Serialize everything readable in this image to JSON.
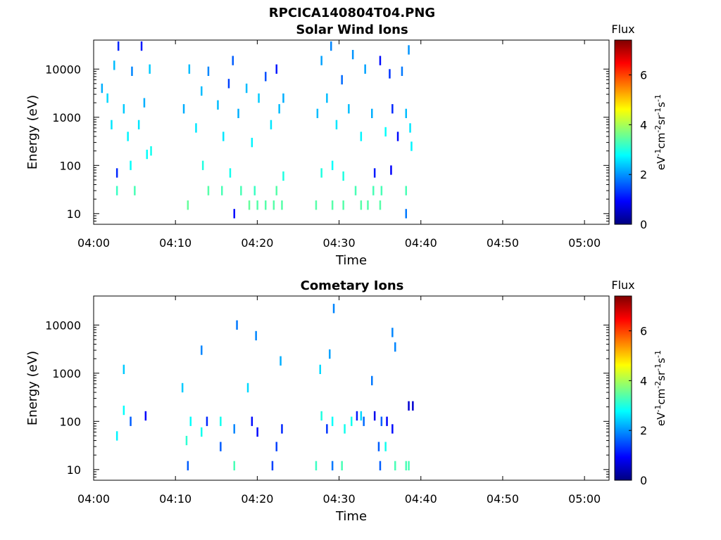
{
  "figure_title": "RPCICA140804T04.PNG",
  "colormap": [
    "#00007f",
    "#0000ff",
    "#007fff",
    "#00ffff",
    "#7fff7f",
    "#ffff00",
    "#ff7f00",
    "#ff0000",
    "#7f0000"
  ],
  "chart_data": [
    {
      "type": "heatmap",
      "title": "Solar Wind Ions",
      "xlabel": "Time",
      "ylabel": "Energy (eV)",
      "y_scale": "log",
      "x_range": [
        "04:00",
        "05:03"
      ],
      "y_range": [
        6,
        40000
      ],
      "x_ticks": [
        "04:00",
        "04:10",
        "04:20",
        "04:30",
        "04:40",
        "04:50",
        "05:00"
      ],
      "y_ticks": [
        "10",
        "100",
        "1000",
        "10000"
      ],
      "colorbar": {
        "title": "Flux",
        "label": "eV-1cm-2sr-1s-1",
        "range": [
          0,
          7.4
        ],
        "ticks": [
          "0",
          "2",
          "4",
          "6"
        ]
      },
      "points": [
        [
          "04:02:50",
          70,
          1.2
        ],
        [
          "04:02:50",
          30,
          3.2
        ],
        [
          "04:04:30",
          100,
          2.8
        ],
        [
          "04:05:00",
          30,
          3.3
        ],
        [
          "04:06:30",
          170,
          2.8
        ],
        [
          "04:07:00",
          200,
          2.9
        ],
        [
          "04:11:30",
          15,
          3.5
        ],
        [
          "04:13:20",
          100,
          3.0
        ],
        [
          "04:14:00",
          30,
          3.4
        ],
        [
          "04:15:40",
          30,
          3.3
        ],
        [
          "04:16:40",
          70,
          2.9
        ],
        [
          "04:17:10",
          10,
          1.0
        ],
        [
          "04:18:00",
          30,
          3.3
        ],
        [
          "04:19:00",
          15,
          3.5
        ],
        [
          "04:19:40",
          30,
          3.2
        ],
        [
          "04:20:00",
          15,
          3.4
        ],
        [
          "04:21:00",
          15,
          3.4
        ],
        [
          "04:22:00",
          15,
          3.4
        ],
        [
          "04:22:20",
          30,
          3.4
        ],
        [
          "04:23:00",
          15,
          3.4
        ],
        [
          "04:23:10",
          60,
          3.0
        ],
        [
          "04:27:10",
          15,
          3.4
        ],
        [
          "04:27:50",
          70,
          3.0
        ],
        [
          "04:29:10",
          15,
          3.4
        ],
        [
          "04:29:10",
          100,
          2.8
        ],
        [
          "04:30:30",
          15,
          3.4
        ],
        [
          "04:30:30",
          60,
          3.0
        ],
        [
          "04:32:00",
          30,
          3.3
        ],
        [
          "04:32:40",
          15,
          3.4
        ],
        [
          "04:33:30",
          15,
          3.4
        ],
        [
          "04:34:10",
          30,
          3.3
        ],
        [
          "04:34:20",
          70,
          1.1
        ],
        [
          "04:35:00",
          15,
          3.4
        ],
        [
          "04:35:10",
          30,
          3.3
        ],
        [
          "04:36:20",
          80,
          0.9
        ],
        [
          "04:38:10",
          10,
          1.8
        ],
        [
          "04:38:10",
          30,
          3.3
        ],
        [
          "04:01:00",
          4000,
          2.2
        ],
        [
          "04:01:40",
          2500,
          2.5
        ],
        [
          "04:02:10",
          700,
          2.6
        ],
        [
          "04:02:30",
          12000,
          2.3
        ],
        [
          "04:03:00",
          30000,
          1.2
        ],
        [
          "04:03:40",
          1500,
          2.4
        ],
        [
          "04:04:10",
          400,
          2.7
        ],
        [
          "04:04:40",
          9000,
          1.9
        ],
        [
          "04:05:30",
          700,
          2.6
        ],
        [
          "04:05:50",
          30000,
          1.1
        ],
        [
          "04:06:10",
          2000,
          2.2
        ],
        [
          "04:06:50",
          10000,
          2.4
        ],
        [
          "04:11:00",
          1500,
          2.2
        ],
        [
          "04:11:40",
          10000,
          2.3
        ],
        [
          "04:12:30",
          600,
          2.6
        ],
        [
          "04:13:10",
          3500,
          2.3
        ],
        [
          "04:14:00",
          9000,
          1.9
        ],
        [
          "04:15:10",
          1800,
          2.3
        ],
        [
          "04:15:50",
          400,
          2.6
        ],
        [
          "04:16:30",
          5000,
          1.4
        ],
        [
          "04:17:00",
          15000,
          1.6
        ],
        [
          "04:17:40",
          1200,
          2.2
        ],
        [
          "04:18:40",
          4000,
          2.3
        ],
        [
          "04:19:20",
          300,
          2.7
        ],
        [
          "04:20:10",
          2500,
          2.4
        ],
        [
          "04:21:00",
          7000,
          1.5
        ],
        [
          "04:21:40",
          700,
          2.6
        ],
        [
          "04:22:20",
          10000,
          1.1
        ],
        [
          "04:22:40",
          1500,
          2.3
        ],
        [
          "04:23:10",
          2500,
          2.2
        ],
        [
          "04:27:20",
          1200,
          2.3
        ],
        [
          "04:27:50",
          15000,
          2.1
        ],
        [
          "04:28:30",
          2500,
          2.3
        ],
        [
          "04:29:00",
          30000,
          1.9
        ],
        [
          "04:29:40",
          700,
          2.6
        ],
        [
          "04:30:20",
          6000,
          1.7
        ],
        [
          "04:31:10",
          1500,
          2.3
        ],
        [
          "04:31:40",
          20000,
          2.0
        ],
        [
          "04:32:40",
          400,
          2.7
        ],
        [
          "04:33:10",
          10000,
          2.1
        ],
        [
          "04:34:00",
          1200,
          2.2
        ],
        [
          "04:35:00",
          15000,
          1.0
        ],
        [
          "04:35:40",
          500,
          2.8
        ],
        [
          "04:36:10",
          8000,
          1.3
        ],
        [
          "04:36:30",
          1500,
          1.2
        ],
        [
          "04:37:10",
          400,
          1.0
        ],
        [
          "04:37:40",
          9000,
          1.8
        ],
        [
          "04:38:10",
          1200,
          2.3
        ],
        [
          "04:38:30",
          25000,
          2.0
        ],
        [
          "04:38:40",
          600,
          2.6
        ],
        [
          "04:38:50",
          250,
          2.7
        ]
      ]
    },
    {
      "type": "heatmap",
      "title": "Cometary Ions",
      "xlabel": "Time",
      "ylabel": "Energy (eV)",
      "y_scale": "log",
      "x_range": [
        "04:00",
        "05:03"
      ],
      "y_range": [
        6,
        40000
      ],
      "x_ticks": [
        "04:00",
        "04:10",
        "04:20",
        "04:30",
        "04:40",
        "04:50",
        "05:00"
      ],
      "y_ticks": [
        "10",
        "100",
        "1000",
        "10000"
      ],
      "colorbar": {
        "title": "Flux",
        "label": "eV-1cm-2sr-1s-1",
        "range": [
          0,
          7.4
        ],
        "ticks": [
          "0",
          "2",
          "4",
          "6"
        ]
      },
      "points": [
        [
          "04:02:50",
          50,
          2.7
        ],
        [
          "04:03:40",
          170,
          2.8
        ],
        [
          "04:03:40",
          1200,
          2.4
        ],
        [
          "04:04:30",
          100,
          1.6
        ],
        [
          "04:06:20",
          130,
          0.9
        ],
        [
          "04:10:50",
          500,
          2.4
        ],
        [
          "04:11:20",
          40,
          3.1
        ],
        [
          "04:11:30",
          12,
          1.6
        ],
        [
          "04:11:50",
          100,
          2.8
        ],
        [
          "04:13:10",
          60,
          2.9
        ],
        [
          "04:13:10",
          3000,
          1.9
        ],
        [
          "04:13:50",
          100,
          1.2
        ],
        [
          "04:15:30",
          30,
          1.6
        ],
        [
          "04:15:30",
          100,
          2.9
        ],
        [
          "04:17:10",
          12,
          3.3
        ],
        [
          "04:17:10",
          70,
          1.9
        ],
        [
          "04:17:30",
          10000,
          1.8
        ],
        [
          "04:18:50",
          500,
          2.5
        ],
        [
          "04:19:20",
          100,
          1.0
        ],
        [
          "04:19:50",
          6000,
          1.9
        ],
        [
          "04:20:00",
          60,
          1.0
        ],
        [
          "04:21:50",
          12,
          1.4
        ],
        [
          "04:22:20",
          30,
          1.4
        ],
        [
          "04:22:50",
          1800,
          2.2
        ],
        [
          "04:23:00",
          70,
          1.2
        ],
        [
          "04:27:10",
          12,
          3.2
        ],
        [
          "04:27:40",
          1200,
          2.5
        ],
        [
          "04:27:50",
          130,
          3.0
        ],
        [
          "04:28:30",
          70,
          1.3
        ],
        [
          "04:28:50",
          2500,
          2.1
        ],
        [
          "04:29:10",
          12,
          1.8
        ],
        [
          "04:29:10",
          100,
          2.8
        ],
        [
          "04:29:20",
          22000,
          1.9
        ],
        [
          "04:30:20",
          12,
          3.3
        ],
        [
          "04:30:40",
          70,
          2.9
        ],
        [
          "04:31:30",
          100,
          2.9
        ],
        [
          "04:32:10",
          130,
          1.1
        ],
        [
          "04:32:40",
          130,
          2.5
        ],
        [
          "04:33:00",
          100,
          1.7
        ],
        [
          "04:34:00",
          700,
          1.8
        ],
        [
          "04:34:20",
          130,
          0.8
        ],
        [
          "04:34:50",
          30,
          1.6
        ],
        [
          "04:35:00",
          12,
          1.6
        ],
        [
          "04:35:10",
          100,
          1.6
        ],
        [
          "04:35:40",
          30,
          2.9
        ],
        [
          "04:35:50",
          100,
          0.9
        ],
        [
          "04:36:30",
          70,
          1.0
        ],
        [
          "04:36:30",
          7000,
          1.9
        ],
        [
          "04:36:50",
          12,
          3.3
        ],
        [
          "04:36:50",
          3500,
          1.9
        ],
        [
          "04:38:10",
          12,
          3.3
        ],
        [
          "04:38:30",
          12,
          3.3
        ],
        [
          "04:38:30",
          210,
          0.6
        ],
        [
          "04:39:00",
          210,
          0.6
        ]
      ]
    }
  ]
}
